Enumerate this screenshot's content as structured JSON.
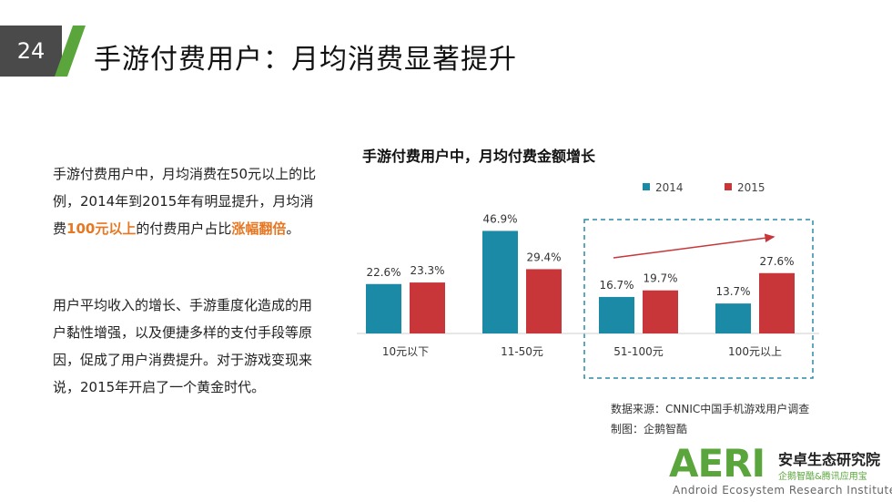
{
  "header": {
    "page_number": "24",
    "title": "手游付费用户：月均消费显著提升"
  },
  "paragraph1": {
    "part1": "手游付费用户中，月均消费在50元以上的比例，2014年到2015年有明显提升，月均消费",
    "highlight1": "100元以上",
    "part2": "的付费用户占比",
    "highlight2": "涨幅翻倍",
    "part3": "。"
  },
  "paragraph2": {
    "text": "用户平均收入的增长、手游重度化造成的用户黏性增强，以及便捷多样的支付手段等原因，促成了用户消费提升。对于游戏变现来说，2015年开启了一个黄金时代。"
  },
  "chart_title": "手游付费用户中，月均付费金额增长",
  "chart_data": {
    "type": "bar",
    "title": "手游付费用户中，月均付费金额增长",
    "categories": [
      "10元以下",
      "11-50元",
      "51-100元",
      "100元以上"
    ],
    "series": [
      {
        "name": "2014",
        "values": [
          22.6,
          46.9,
          16.7,
          13.7
        ],
        "labels": [
          "22.6%",
          "46.9%",
          "16.7%",
          "13.7%"
        ],
        "color": "#1a8aa6"
      },
      {
        "name": "2015",
        "values": [
          23.3,
          29.4,
          19.7,
          27.6
        ],
        "labels": [
          "23.3%",
          "29.4%",
          "19.7%",
          "27.6%"
        ],
        "color": "#c8363a"
      }
    ],
    "ylim": [
      0,
      50
    ],
    "unit": "%",
    "legend_position": "top-right",
    "grid": false,
    "annotation": "dashed box around 51-100元 and 100元以上 with rising trend arrow"
  },
  "source": {
    "line1": "数据来源：CNNIC中国手机游戏用户调查",
    "line2": "制图：企鹅智酷"
  },
  "logo": {
    "mark": "AERI",
    "name": "安卓生态研究院",
    "sub": "企鹅智酷&腾讯应用宝",
    "english": "Android Ecosystem Research Institute"
  },
  "colors": {
    "accent_green": "#5ba63c",
    "bar_2014": "#1a8aa6",
    "bar_2015": "#c8363a",
    "highlight_orange": "#e87722",
    "page_num_bg": "#4a4a4a"
  }
}
